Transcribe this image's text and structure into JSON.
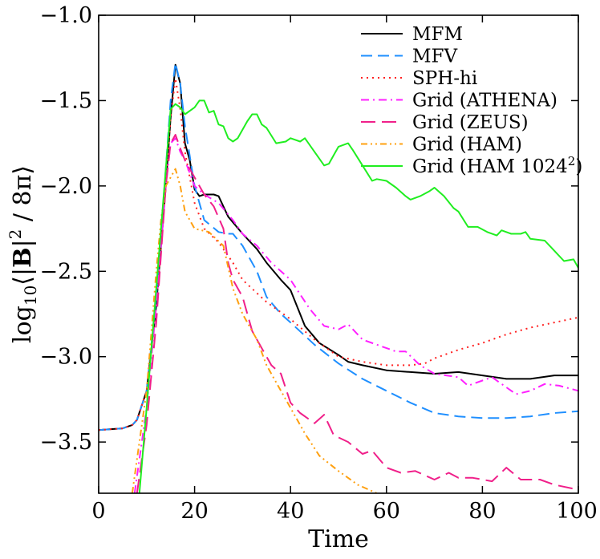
{
  "chart_data": {
    "type": "line",
    "title": "",
    "xlabel": "Time",
    "ylabel": {
      "base": "log",
      "sub": "10",
      "open": "⟨",
      "bar": "|",
      "bold": "B",
      "sup": "2",
      "rest": " / 8π",
      "close": "⟩"
    },
    "xlim": [
      0,
      100
    ],
    "ylim": [
      -3.8,
      -1.0
    ],
    "xticks": [
      0,
      20,
      40,
      60,
      80,
      100
    ],
    "yticks": [
      -1.0,
      -1.5,
      -2.0,
      -2.5,
      -3.0,
      -3.5
    ],
    "xtick_labels": [
      "0",
      "20",
      "40",
      "60",
      "80",
      "100"
    ],
    "ytick_labels": [
      "−1.0",
      "−1.5",
      "−2.0",
      "−2.5",
      "−3.0",
      "−3.5"
    ],
    "grid": false,
    "legend_position": "top-right",
    "series": [
      {
        "name": "MFM",
        "color": "#000000",
        "dash": "solid",
        "x": [
          0,
          5,
          7,
          8,
          10,
          12,
          14,
          15,
          16,
          17,
          18,
          19,
          20,
          21,
          22,
          24,
          25,
          27,
          30,
          33,
          35,
          38,
          40,
          43,
          46,
          50,
          52,
          55,
          60,
          65,
          70,
          75,
          80,
          85,
          90,
          95,
          100
        ],
        "y": [
          -3.43,
          -3.42,
          -3.4,
          -3.37,
          -3.2,
          -2.7,
          -2.0,
          -1.6,
          -1.29,
          -1.4,
          -1.75,
          -1.85,
          -2.02,
          -2.06,
          -2.05,
          -2.05,
          -2.06,
          -2.18,
          -2.28,
          -2.37,
          -2.45,
          -2.55,
          -2.61,
          -2.82,
          -2.92,
          -2.99,
          -3.03,
          -3.05,
          -3.08,
          -3.09,
          -3.1,
          -3.09,
          -3.11,
          -3.13,
          -3.13,
          -3.11,
          -3.11
        ]
      },
      {
        "name": "MFV",
        "color": "#1f8fff",
        "dash": "dashed",
        "x": [
          0,
          5,
          7,
          8,
          10,
          12,
          14,
          15,
          16,
          17,
          18,
          20,
          22,
          25,
          27,
          28,
          30,
          33,
          35,
          38,
          40,
          45,
          50,
          55,
          60,
          65,
          70,
          75,
          80,
          85,
          90,
          95,
          100
        ],
        "y": [
          -3.43,
          -3.42,
          -3.4,
          -3.37,
          -3.2,
          -2.65,
          -1.9,
          -1.5,
          -1.28,
          -1.4,
          -1.65,
          -2.0,
          -2.2,
          -2.27,
          -2.28,
          -2.28,
          -2.35,
          -2.5,
          -2.65,
          -2.75,
          -2.8,
          -2.93,
          -3.04,
          -3.13,
          -3.2,
          -3.27,
          -3.33,
          -3.35,
          -3.36,
          -3.36,
          -3.35,
          -3.33,
          -3.32
        ]
      },
      {
        "name": "SPH-hi",
        "color": "#ff2020",
        "dash": "dotted",
        "x": [
          0,
          5,
          7,
          8,
          10,
          12,
          14,
          15,
          16,
          17,
          18,
          20,
          22,
          25,
          28,
          30,
          35,
          40,
          45,
          50,
          55,
          60,
          65,
          68,
          70,
          75,
          80,
          85,
          90,
          95,
          100
        ],
        "y": [
          -3.43,
          -3.42,
          -3.4,
          -3.37,
          -3.2,
          -2.7,
          -2.0,
          -1.6,
          -1.37,
          -1.55,
          -1.8,
          -2.1,
          -2.25,
          -2.33,
          -2.45,
          -2.55,
          -2.68,
          -2.78,
          -2.9,
          -3.0,
          -3.03,
          -3.05,
          -3.05,
          -3.04,
          -3.01,
          -2.96,
          -2.92,
          -2.87,
          -2.83,
          -2.8,
          -2.77
        ]
      },
      {
        "name": "Grid (ATHENA)",
        "color": "#ff20ff",
        "dash": "dashdot",
        "x": [
          7.5,
          8,
          10,
          12,
          14,
          15,
          16,
          17,
          18,
          20,
          22,
          25,
          28,
          30,
          33,
          36,
          40,
          44,
          47,
          50,
          52,
          55,
          58,
          62,
          64,
          67,
          70,
          75,
          77,
          80,
          82,
          85,
          87,
          90,
          93,
          96,
          100
        ],
        "y": [
          -3.8,
          -3.7,
          -3.3,
          -2.7,
          -2.0,
          -1.75,
          -1.72,
          -1.8,
          -1.85,
          -2.0,
          -2.05,
          -2.1,
          -2.2,
          -2.28,
          -2.35,
          -2.45,
          -2.55,
          -2.72,
          -2.82,
          -2.84,
          -2.81,
          -2.9,
          -2.93,
          -2.97,
          -2.97,
          -3.05,
          -3.1,
          -3.12,
          -3.17,
          -3.14,
          -3.12,
          -3.18,
          -3.22,
          -3.2,
          -3.16,
          -3.17,
          -3.2
        ]
      },
      {
        "name": "Grid (ZEUS)",
        "color": "#f0208a",
        "dash": "longdash",
        "x": [
          8,
          10,
          12,
          14,
          15,
          16,
          17,
          18,
          20,
          22,
          24,
          26,
          27,
          28,
          30,
          32,
          34,
          36,
          38,
          40,
          42,
          45,
          47,
          49,
          52,
          55,
          57,
          60,
          63,
          66,
          70,
          73,
          75,
          78,
          82,
          85,
          88,
          92,
          95,
          100
        ],
        "y": [
          -3.8,
          -3.4,
          -2.8,
          -2.0,
          -1.75,
          -1.7,
          -1.78,
          -1.85,
          -1.95,
          -2.05,
          -2.12,
          -2.25,
          -2.45,
          -2.55,
          -2.65,
          -2.85,
          -2.95,
          -3.05,
          -3.1,
          -3.27,
          -3.33,
          -3.39,
          -3.34,
          -3.46,
          -3.5,
          -3.57,
          -3.55,
          -3.65,
          -3.68,
          -3.67,
          -3.72,
          -3.68,
          -3.71,
          -3.71,
          -3.73,
          -3.65,
          -3.72,
          -3.72,
          -3.75,
          -3.78
        ]
      },
      {
        "name": "Grid (HAM)",
        "color": "#ffa010",
        "dash": "dashdotdot",
        "x": [
          7,
          8,
          10,
          12,
          13,
          14,
          15,
          16,
          17,
          18,
          20,
          23,
          26,
          28,
          30,
          33,
          35,
          38,
          40,
          43,
          46,
          50,
          54,
          58
        ],
        "y": [
          -3.8,
          -3.6,
          -3.2,
          -2.5,
          -2.2,
          -2.0,
          -1.95,
          -1.9,
          -2.0,
          -2.15,
          -2.25,
          -2.27,
          -2.35,
          -2.6,
          -2.75,
          -2.9,
          -3.05,
          -3.2,
          -3.3,
          -3.45,
          -3.58,
          -3.67,
          -3.75,
          -3.8
        ]
      },
      {
        "name": "Grid (HAM 1024",
        "name_sup": "2",
        "name_end": ")",
        "color": "#20ee20",
        "dash": "solid",
        "x": [
          8.5,
          10,
          12,
          14,
          15,
          16,
          17,
          18,
          20,
          21,
          22,
          23,
          24,
          25,
          26,
          27,
          28,
          29,
          31,
          32,
          33,
          34,
          35,
          37,
          39,
          40,
          42,
          43,
          45,
          47,
          48,
          49,
          50,
          52,
          53,
          55,
          57,
          58,
          60,
          62,
          64,
          65,
          67,
          69,
          70,
          72,
          74,
          75,
          77,
          79,
          81,
          83,
          84,
          86,
          88,
          89,
          90,
          93,
          95,
          97,
          99,
          100
        ],
        "y": [
          -3.8,
          -3.3,
          -2.6,
          -1.9,
          -1.55,
          -1.52,
          -1.54,
          -1.58,
          -1.54,
          -1.5,
          -1.5,
          -1.57,
          -1.56,
          -1.64,
          -1.65,
          -1.72,
          -1.74,
          -1.72,
          -1.62,
          -1.58,
          -1.58,
          -1.64,
          -1.66,
          -1.75,
          -1.74,
          -1.72,
          -1.74,
          -1.72,
          -1.8,
          -1.88,
          -1.87,
          -1.82,
          -1.77,
          -1.75,
          -1.79,
          -1.88,
          -1.97,
          -1.96,
          -1.97,
          -2.01,
          -2.06,
          -2.08,
          -2.06,
          -2.03,
          -2.01,
          -2.06,
          -2.13,
          -2.15,
          -2.24,
          -2.24,
          -2.27,
          -2.29,
          -2.26,
          -2.28,
          -2.28,
          -2.27,
          -2.31,
          -2.32,
          -2.38,
          -2.44,
          -2.43,
          -2.48
        ]
      }
    ]
  }
}
